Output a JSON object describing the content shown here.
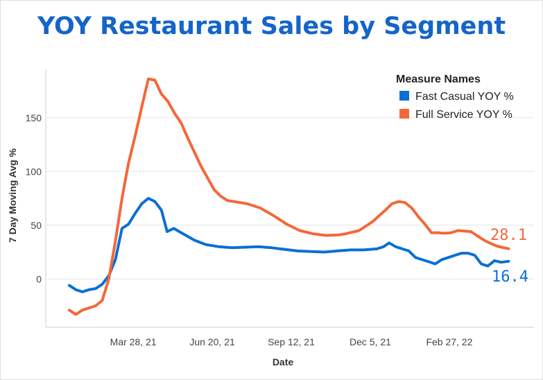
{
  "colors": {
    "title": "#1565c8",
    "fast_casual": "#0b6fd6",
    "full_service": "#f4673b",
    "grid": "#e6e6e6",
    "axis": "#cfcfcf",
    "page_border": "#dddddd"
  },
  "chart_data": {
    "type": "line",
    "title": "YOY Restaurant Sales by Segment",
    "xlabel": "Date",
    "ylabel": "7 Day Moving Avg %",
    "x_type": "date",
    "x_ticks": [
      {
        "date": "2021-03-28",
        "label": "Mar 28, 21"
      },
      {
        "date": "2021-06-20",
        "label": "Jun 20, 21"
      },
      {
        "date": "2021-09-12",
        "label": "Sep 12, 21"
      },
      {
        "date": "2021-12-05",
        "label": "Dec 5, 21"
      },
      {
        "date": "2022-02-27",
        "label": "Feb 27, 22"
      }
    ],
    "xlim": [
      "2020-12-25",
      "2022-05-28"
    ],
    "y_ticks": [
      0,
      50,
      100,
      150
    ],
    "ylim": [
      -45,
      195
    ],
    "grid": "horizontal",
    "legend": {
      "title": "Measure Names",
      "position": "top-right"
    },
    "series": [
      {
        "name": "Fast Casual YOY %",
        "color": "#0b6fd6",
        "end_label": "16.4",
        "points": [
          [
            "2021-01-19",
            -6
          ],
          [
            "2021-01-26",
            -10
          ],
          [
            "2021-02-02",
            -12
          ],
          [
            "2021-02-09",
            -10
          ],
          [
            "2021-02-16",
            -9
          ],
          [
            "2021-02-23",
            -5
          ],
          [
            "2021-03-02",
            3
          ],
          [
            "2021-03-09",
            18
          ],
          [
            "2021-03-16",
            47
          ],
          [
            "2021-03-23",
            51
          ],
          [
            "2021-03-30",
            61
          ],
          [
            "2021-04-06",
            70
          ],
          [
            "2021-04-13",
            75
          ],
          [
            "2021-04-20",
            72
          ],
          [
            "2021-04-27",
            64
          ],
          [
            "2021-05-03",
            44
          ],
          [
            "2021-05-10",
            47
          ],
          [
            "2021-05-20",
            42
          ],
          [
            "2021-06-01",
            36
          ],
          [
            "2021-06-13",
            32
          ],
          [
            "2021-06-27",
            30
          ],
          [
            "2021-07-11",
            29
          ],
          [
            "2021-07-25",
            29.5
          ],
          [
            "2021-08-08",
            30
          ],
          [
            "2021-08-22",
            29
          ],
          [
            "2021-09-05",
            27.5
          ],
          [
            "2021-09-19",
            26
          ],
          [
            "2021-10-03",
            25.5
          ],
          [
            "2021-10-17",
            25
          ],
          [
            "2021-10-31",
            26
          ],
          [
            "2021-11-14",
            27
          ],
          [
            "2021-11-28",
            27
          ],
          [
            "2021-12-12",
            28
          ],
          [
            "2021-12-19",
            30
          ],
          [
            "2021-12-25",
            33.5
          ],
          [
            "2022-01-01",
            30
          ],
          [
            "2022-01-08",
            28
          ],
          [
            "2022-01-15",
            26
          ],
          [
            "2022-01-22",
            20
          ],
          [
            "2022-01-29",
            18
          ],
          [
            "2022-02-05",
            16
          ],
          [
            "2022-02-12",
            14
          ],
          [
            "2022-02-19",
            18
          ],
          [
            "2022-02-26",
            20
          ],
          [
            "2022-03-05",
            22
          ],
          [
            "2022-03-12",
            24
          ],
          [
            "2022-03-19",
            24
          ],
          [
            "2022-03-26",
            22
          ],
          [
            "2022-04-02",
            14
          ],
          [
            "2022-04-09",
            12
          ],
          [
            "2022-04-16",
            17
          ],
          [
            "2022-04-23",
            15.5
          ],
          [
            "2022-05-01",
            16.4
          ]
        ]
      },
      {
        "name": "Full Service YOY %",
        "color": "#f4673b",
        "end_label": "28.1",
        "points": [
          [
            "2021-01-19",
            -29
          ],
          [
            "2021-01-26",
            -33
          ],
          [
            "2021-02-02",
            -29
          ],
          [
            "2021-02-09",
            -27
          ],
          [
            "2021-02-16",
            -25
          ],
          [
            "2021-02-23",
            -20
          ],
          [
            "2021-03-02",
            0
          ],
          [
            "2021-03-09",
            35
          ],
          [
            "2021-03-16",
            75
          ],
          [
            "2021-03-23",
            108
          ],
          [
            "2021-03-30",
            133
          ],
          [
            "2021-04-06",
            160
          ],
          [
            "2021-04-13",
            186
          ],
          [
            "2021-04-20",
            185
          ],
          [
            "2021-04-27",
            172
          ],
          [
            "2021-05-04",
            165
          ],
          [
            "2021-05-11",
            154
          ],
          [
            "2021-05-18",
            145
          ],
          [
            "2021-05-25",
            131
          ],
          [
            "2021-06-01",
            118
          ],
          [
            "2021-06-08",
            105
          ],
          [
            "2021-06-15",
            94
          ],
          [
            "2021-06-22",
            83
          ],
          [
            "2021-06-29",
            77
          ],
          [
            "2021-07-06",
            73
          ],
          [
            "2021-07-13",
            72
          ],
          [
            "2021-07-27",
            70
          ],
          [
            "2021-08-10",
            66
          ],
          [
            "2021-08-24",
            59
          ],
          [
            "2021-09-07",
            51
          ],
          [
            "2021-09-21",
            45
          ],
          [
            "2021-10-05",
            42
          ],
          [
            "2021-10-19",
            40.5
          ],
          [
            "2021-11-02",
            41
          ],
          [
            "2021-11-09",
            42
          ],
          [
            "2021-11-23",
            45
          ],
          [
            "2021-12-07",
            53
          ],
          [
            "2021-12-21",
            64
          ],
          [
            "2021-12-28",
            70
          ],
          [
            "2022-01-04",
            72
          ],
          [
            "2022-01-11",
            71
          ],
          [
            "2022-01-18",
            66
          ],
          [
            "2022-01-25",
            58
          ],
          [
            "2022-02-01",
            51
          ],
          [
            "2022-02-08",
            43
          ],
          [
            "2022-02-15",
            43
          ],
          [
            "2022-02-22",
            42.5
          ],
          [
            "2022-03-01",
            43
          ],
          [
            "2022-03-08",
            45
          ],
          [
            "2022-03-15",
            44.5
          ],
          [
            "2022-03-22",
            44
          ],
          [
            "2022-03-29",
            40
          ],
          [
            "2022-04-05",
            36
          ],
          [
            "2022-04-12",
            33
          ],
          [
            "2022-04-19",
            30.5
          ],
          [
            "2022-04-26",
            29
          ],
          [
            "2022-05-01",
            28.1
          ]
        ]
      }
    ]
  }
}
